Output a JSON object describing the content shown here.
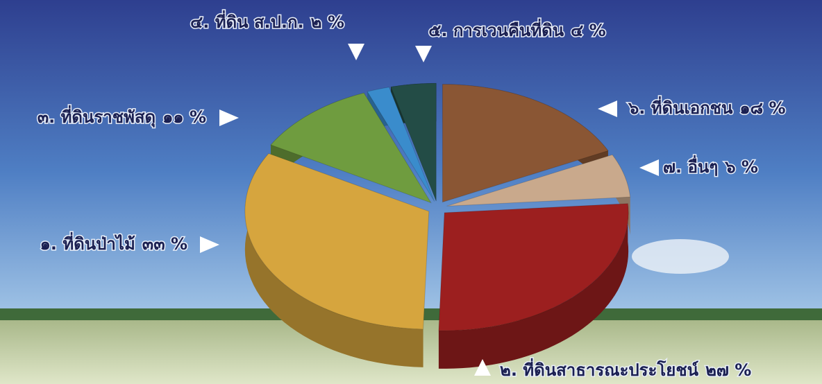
{
  "chart_data": {
    "type": "pie",
    "categories": [
      "๖. ที่ดินเอกชน",
      "๗. อื่นๆ",
      "๒. ที่ดินสาธารณะประโยชน์",
      "๑. ที่ดินป่าไม้",
      "๓. ที่ดินราชพัสดุ",
      "๔. ที่ดิน ส.ป.ก.",
      "๕. การเวนคืนที่ดิน"
    ],
    "values": [
      18,
      6,
      27,
      33,
      11,
      2,
      4
    ],
    "value_labels": [
      "๑๘ %",
      "๖ %",
      "๒๗ %",
      "๓๓ %",
      "๑๑ %",
      "๒ %",
      "๔ %"
    ],
    "colors": [
      "#8a5634",
      "#c9a98c",
      "#9c1f1f",
      "#d6a53e",
      "#6f9c3f",
      "#3a8ccc",
      "#234c46"
    ]
  }
}
